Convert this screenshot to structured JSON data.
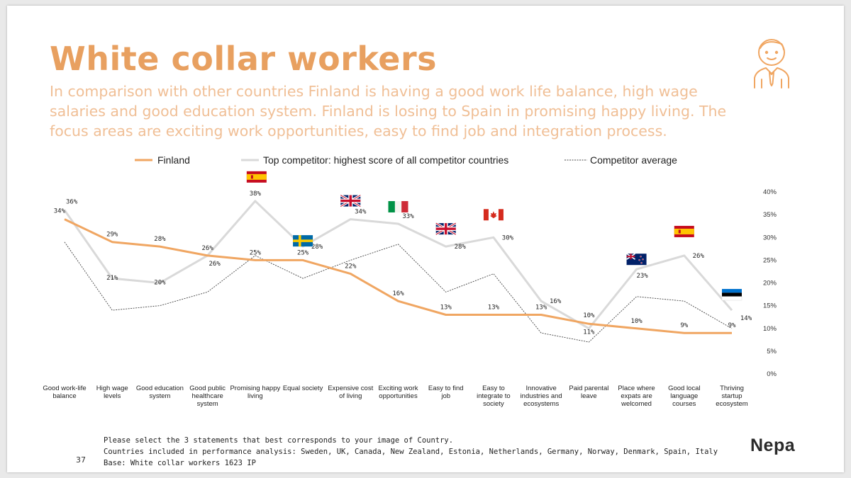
{
  "slide": {
    "title": "White collar workers",
    "subtitle": "In comparison with other countries Finland is having a good work life balance, high wage salaries and good education system. Finland is losing to Spain in promising happy living. The focus areas are exciting work opportunities, easy to find job and integration process.",
    "page_number": "37",
    "logo_text": "Nepa",
    "footnotes": [
      "Please select the 3 statements that best corresponds to your image of Country.",
      "Countries included in performance analysis: Sweden, UK, Canada, New Zealand, Estonia, Netherlands, Germany, Norway, Denmark, Spain, Italy",
      "Base: White collar workers 1623 IP"
    ],
    "icon": "person-with-tie-icon"
  },
  "colors": {
    "accent": "#e8a060",
    "finland": "#f0a662",
    "top_competitor": "#d9d9d9",
    "competitor_average": "#444444"
  },
  "chart_data": {
    "type": "line",
    "categories": [
      "Good work-life balance",
      "High wage levels",
      "Good education system",
      "Good public healthcare system",
      "Promising happy living",
      "Equal society",
      "Expensive cost of living",
      "Exciting work opportunities",
      "Easy to find job",
      "Easy to integrate to society",
      "Innovative industries and ecosystems",
      "Paid parental leave",
      "Place where expats are welcomed",
      "Good local language courses",
      "Thriving startup ecosystem"
    ],
    "series": [
      {
        "name": "Finland",
        "values": [
          34,
          29,
          28,
          26,
          25,
          25,
          22,
          16,
          13,
          13,
          13,
          11,
          10,
          9,
          9
        ],
        "labels": [
          "34%",
          "29%",
          "28%",
          "26%",
          "25%",
          "25%",
          "22%",
          "16%",
          "13%",
          "13%",
          "13%",
          "11%",
          "10%",
          "9%",
          "9%"
        ]
      },
      {
        "name": "Top competitor: highest score of all competitor countries",
        "values": [
          36,
          21,
          20,
          26,
          38,
          28,
          34,
          33,
          28,
          30,
          16,
          10,
          23,
          26,
          14
        ],
        "labels": [
          "36%",
          "21%",
          "20%",
          "26%",
          "38%",
          "28%",
          "34%",
          "33%",
          "28%",
          "30%",
          "16%",
          "10%",
          "23%",
          "26%",
          "14%"
        ],
        "countries": [
          "",
          "",
          "",
          "",
          "Spain",
          "Sweden",
          "UK",
          "Italy",
          "UK",
          "Canada",
          "",
          "",
          "New Zealand",
          "Spain",
          "Estonia"
        ]
      },
      {
        "name": "Competitor average",
        "values": [
          29,
          14,
          15,
          18,
          26,
          21,
          25,
          28.5,
          18,
          22,
          9,
          7,
          17,
          16,
          10
        ]
      }
    ],
    "y_ticks": [
      "0%",
      "5%",
      "10%",
      "15%",
      "20%",
      "25%",
      "30%",
      "35%",
      "40%"
    ],
    "ylim": [
      0,
      40
    ],
    "y_axis_position": "right",
    "grid": false,
    "legend_position": "top"
  }
}
